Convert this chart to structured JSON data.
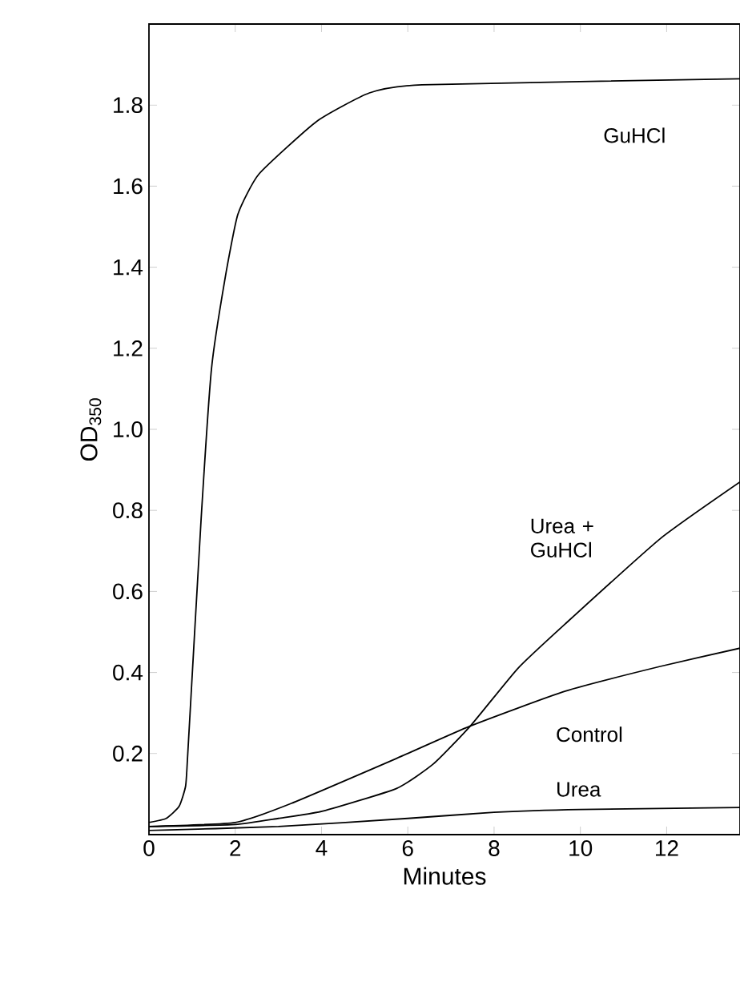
{
  "chart_data": {
    "type": "line",
    "xlabel": "Minutes",
    "ylabel": "OD$_{350}$",
    "xlim": [
      0,
      13.7
    ],
    "ylim": [
      0,
      2.0
    ],
    "xticks": [
      0,
      2,
      4,
      6,
      8,
      10,
      12
    ],
    "yticks": [
      0.2,
      0.4,
      0.6,
      0.8,
      {
        "value": 1.0,
        "label": "1.0"
      },
      1.2,
      1.4,
      1.6,
      1.8
    ],
    "grid": false,
    "legend": false,
    "marker": "none",
    "line_style": "solid",
    "series": [
      {
        "name": "GuHCl",
        "color": "#000000",
        "x": [
          0,
          0.4,
          0.7,
          0.85,
          0.9,
          1.21,
          1.45,
          1.76,
          2.06,
          2.55,
          3.89,
          5.11,
          6.33,
          13.7
        ],
        "values": [
          0.03,
          0.04,
          0.07,
          0.12,
          0.2,
          0.78,
          1.15,
          1.37,
          1.53,
          1.63,
          1.76,
          1.83,
          1.85,
          1.865
        ]
      },
      {
        "name": "Urea + GuHCl",
        "color": "#000000",
        "x": [
          0,
          2,
          3,
          4.03,
          5.74,
          6.6,
          7.45,
          8.55,
          9.65,
          11.85,
          13.7
        ],
        "values": [
          0.02,
          0.025,
          0.04,
          0.058,
          0.114,
          0.175,
          0.268,
          0.41,
          0.52,
          0.73,
          0.87
        ]
      },
      {
        "name": "Control",
        "color": "#000000",
        "x": [
          0,
          2,
          3.3,
          5.74,
          7.45,
          9.65,
          11.85,
          13.7
        ],
        "values": [
          0.02,
          0.03,
          0.077,
          0.188,
          0.268,
          0.354,
          0.415,
          0.46
        ]
      },
      {
        "name": "Urea",
        "color": "#000000",
        "x": [
          0,
          3,
          6,
          8,
          10,
          13.7
        ],
        "values": [
          0.01,
          0.02,
          0.04,
          0.055,
          0.062,
          0.067
        ]
      }
    ]
  }
}
